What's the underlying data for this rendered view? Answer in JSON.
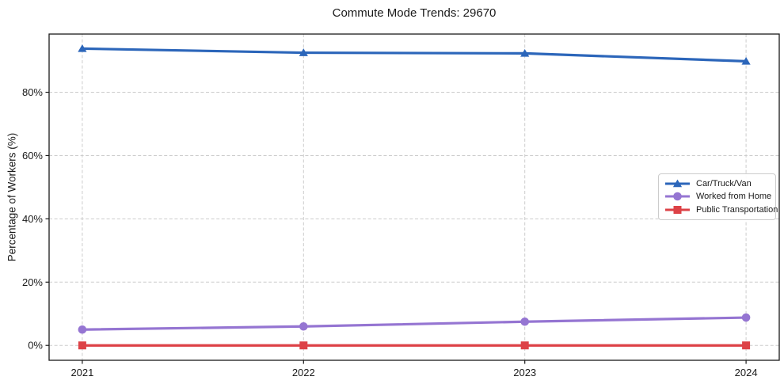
{
  "figure": {
    "title": "Commute Mode Trends: 29670"
  },
  "chart_data": {
    "type": "line",
    "title": "Commute Mode Trends: 29670",
    "xlabel": "",
    "ylabel": "Percentage of Workers (%)",
    "categories": [
      "2021",
      "2022",
      "2023",
      "2024"
    ],
    "x": [
      2021,
      2022,
      2023,
      2024
    ],
    "x_tick_labels": [
      "2021",
      "2022",
      "2023",
      "2024"
    ],
    "y_ticks": [
      0,
      20,
      40,
      60,
      80
    ],
    "y_tick_labels": [
      "0%",
      "20%",
      "40%",
      "60%",
      "80%"
    ],
    "xlim": [
      2020.85,
      2024.15
    ],
    "ylim": [
      -4.7,
      98.4
    ],
    "grid": true,
    "grid_line_style": "dashed",
    "legend_position": "center right",
    "series": [
      {
        "name": "Car/Truck/Van",
        "marker": "triangle",
        "color": "#2c66ba",
        "values": [
          93.8,
          92.5,
          92.3,
          89.8
        ]
      },
      {
        "name": "Worked from Home",
        "marker": "circle",
        "color": "#9575d2",
        "values": [
          5.0,
          6.0,
          7.5,
          8.8
        ]
      },
      {
        "name": "Public Transportation",
        "marker": "square",
        "color": "#dd4247",
        "values": [
          0.0,
          0.0,
          0.0,
          0.0
        ]
      }
    ],
    "colors": {
      "grid": "#cccccc",
      "axis": "#1a1a1a",
      "text": "#1a1a1a",
      "background": "#ffffff"
    }
  }
}
